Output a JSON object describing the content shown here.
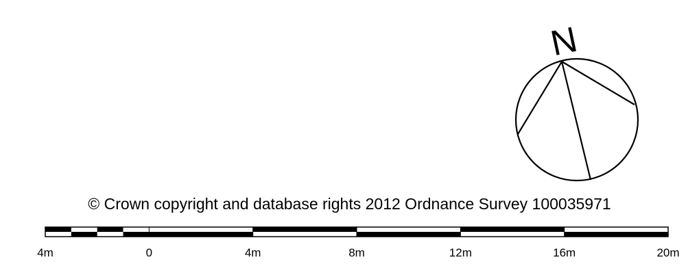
{
  "north_arrow": {
    "label": "N",
    "icon": "north-compass-icon"
  },
  "copyright": {
    "text": "© Crown copyright and database rights 2012 Ordnance Survey 100035971"
  },
  "scale_bar": {
    "unit": "m",
    "ticks": [
      {
        "value": -4,
        "label": "4m"
      },
      {
        "value": 0,
        "label": "0"
      },
      {
        "value": 4,
        "label": "4m"
      },
      {
        "value": 8,
        "label": "8m"
      },
      {
        "value": 12,
        "label": "12m"
      },
      {
        "value": 16,
        "label": "16m"
      },
      {
        "value": 20,
        "label": "20m"
      }
    ],
    "range": [
      -4,
      20
    ],
    "fine_subdivision_step": 1,
    "major_step": 4
  }
}
